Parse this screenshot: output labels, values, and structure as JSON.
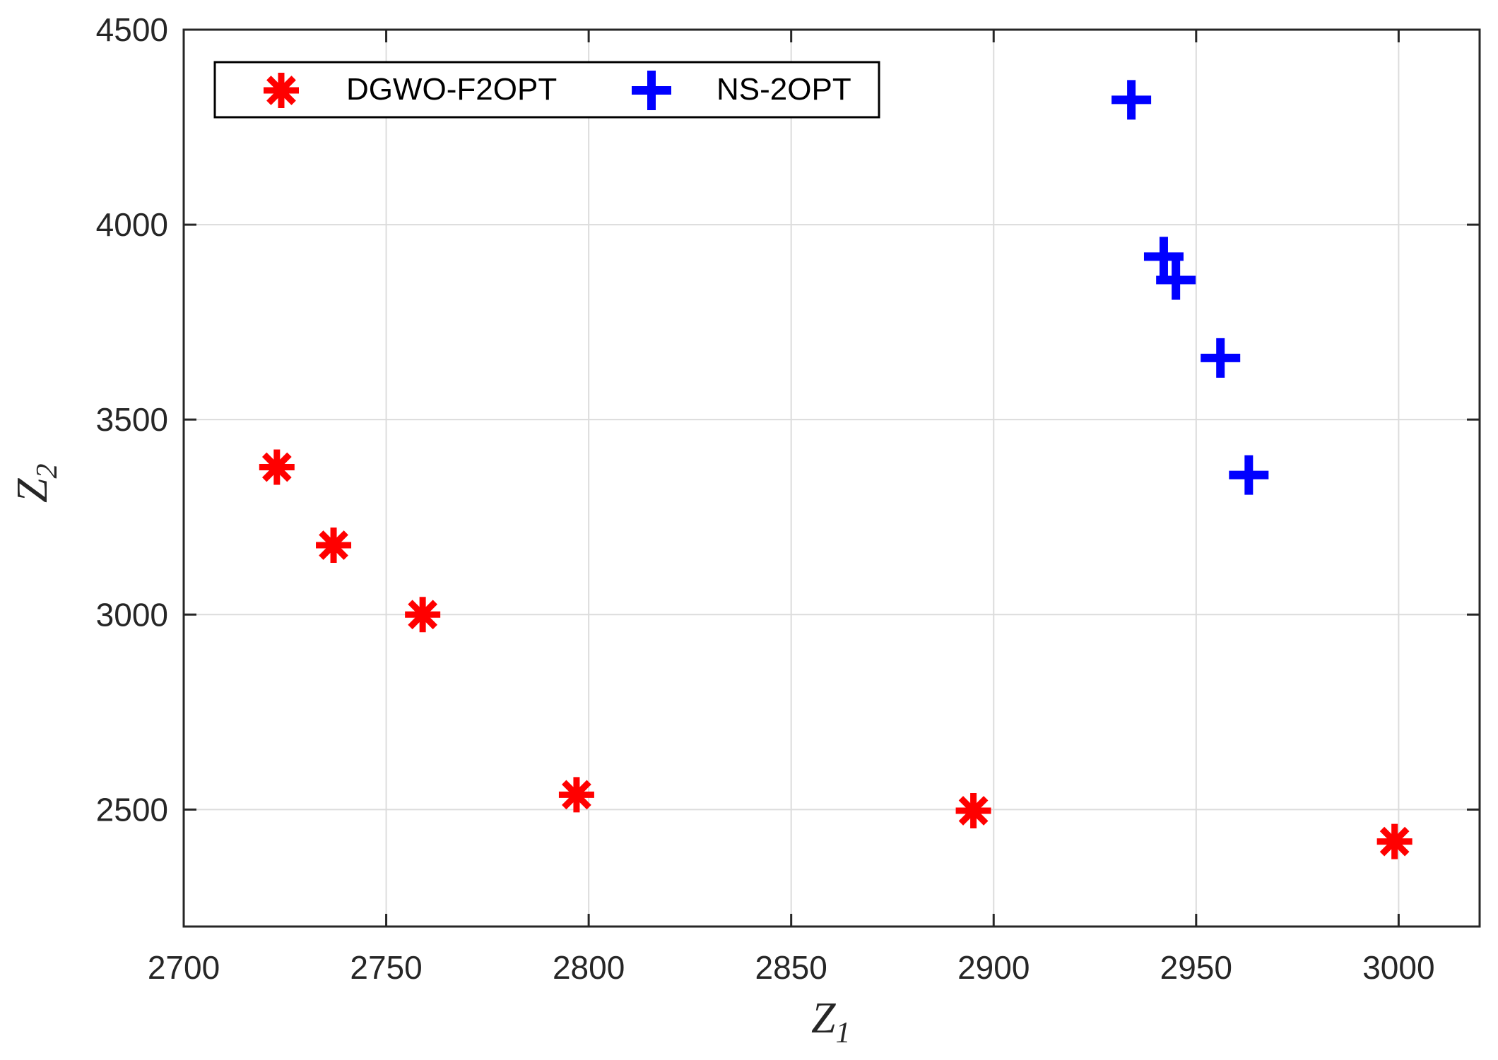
{
  "chart_data": {
    "type": "scatter",
    "title": "",
    "xlabel": "Z",
    "xlabel_sub": "1",
    "ylabel": "Z",
    "ylabel_sub": "2",
    "xlim": [
      2700,
      3020
    ],
    "ylim": [
      2200,
      4500
    ],
    "xticks": [
      2700,
      2750,
      2800,
      2850,
      2900,
      2950,
      3000
    ],
    "yticks": [
      2500,
      3000,
      3500,
      4000,
      4500
    ],
    "grid": true,
    "legend_position": "top-left",
    "series": [
      {
        "name": "DGWO-F2OPT",
        "marker": "asterisk",
        "color": "#ff0000",
        "x": [
          2723,
          2737,
          2759,
          2797,
          2895,
          2999
        ],
        "y": [
          3378,
          3178,
          3000,
          2538,
          2497,
          2418
        ]
      },
      {
        "name": "NS-2OPT",
        "marker": "plus",
        "color": "#0000ff",
        "x": [
          2934,
          2942,
          2945,
          2956,
          2963
        ],
        "y": [
          4320,
          3918,
          3858,
          3658,
          3358
        ]
      }
    ]
  }
}
